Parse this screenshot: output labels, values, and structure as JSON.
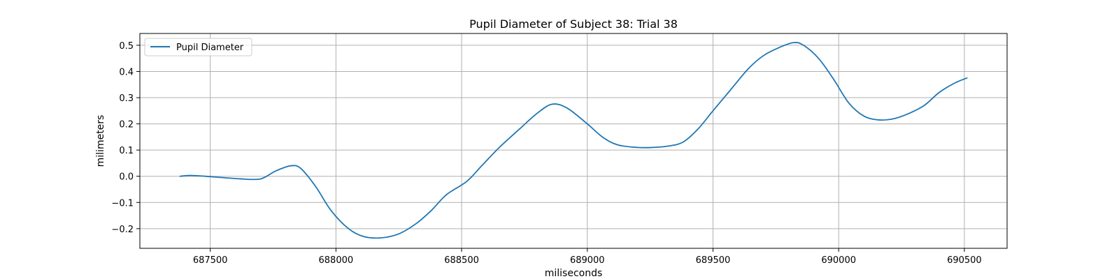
{
  "chart_data": {
    "type": "line",
    "title": "Pupil Diameter of Subject 38: Trial 38",
    "xlabel": "miliseconds",
    "ylabel": "milimeters",
    "xlim": [
      687220,
      690670
    ],
    "ylim": [
      -0.275,
      0.545
    ],
    "xticks": [
      687500,
      688000,
      688500,
      689000,
      689500,
      690000,
      690500
    ],
    "xtick_labels": [
      "687500",
      "688000",
      "688500",
      "689000",
      "689500",
      "690000",
      "690500"
    ],
    "yticks": [
      -0.2,
      -0.1,
      0.0,
      0.1,
      0.2,
      0.3,
      0.4,
      0.5
    ],
    "ytick_labels": [
      "−0.2",
      "−0.1",
      "0.0",
      "0.1",
      "0.2",
      "0.3",
      "0.4",
      "0.5"
    ],
    "grid": true,
    "legend_position": "top-left",
    "series": [
      {
        "name": "Pupil Diameter",
        "color": "#1f77b4",
        "x": [
          687380,
          687420,
          687480,
          687550,
          687620,
          687700,
          687760,
          687820,
          687860,
          687920,
          687980,
          688050,
          688110,
          688180,
          688250,
          688320,
          688380,
          688440,
          688520,
          688580,
          688650,
          688730,
          688800,
          688860,
          688920,
          689000,
          689060,
          689120,
          689200,
          689260,
          689320,
          689380,
          689440,
          689500,
          689570,
          689640,
          689700,
          689760,
          689820,
          689860,
          689920,
          689980,
          690040,
          690100,
          690160,
          690220,
          690280,
          690340,
          690400,
          690460,
          690510
        ],
        "y": [
          0.0,
          0.003,
          0.0,
          -0.005,
          -0.01,
          -0.01,
          0.02,
          0.04,
          0.03,
          -0.04,
          -0.13,
          -0.2,
          -0.23,
          -0.235,
          -0.22,
          -0.18,
          -0.13,
          -0.07,
          -0.02,
          0.04,
          0.11,
          0.18,
          0.24,
          0.275,
          0.26,
          0.2,
          0.15,
          0.12,
          0.11,
          0.11,
          0.115,
          0.13,
          0.18,
          0.25,
          0.33,
          0.41,
          0.46,
          0.49,
          0.51,
          0.5,
          0.45,
          0.37,
          0.28,
          0.23,
          0.215,
          0.22,
          0.24,
          0.27,
          0.32,
          0.355,
          0.375
        ]
      }
    ]
  }
}
